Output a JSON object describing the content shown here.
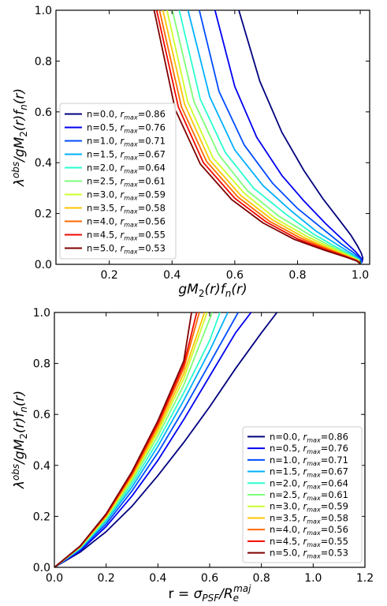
{
  "chart_data": [
    {
      "type": "line",
      "xlabel": "gM₂(r)fₙ(r)",
      "ylabel": "λᵒᵇˢ/gM₂(r)fₙ(r)",
      "xlim": [
        0.03,
        1.03
      ],
      "ylim": [
        0.0,
        1.0
      ],
      "xticks": [
        "0.2",
        "0.4",
        "0.6",
        "0.8",
        "1.0"
      ],
      "yticks": [
        "0.0",
        "0.2",
        "0.4",
        "0.6",
        "0.8",
        "1.0"
      ],
      "grid": false,
      "legend_position": "lower-left",
      "series": [
        {
          "name": "n=0.0, r_max=0.86",
          "n": 0.0,
          "r_max": 0.86,
          "color": "#00007f",
          "x": [
            0.613,
            0.68,
            0.75,
            0.82,
            0.88,
            0.93,
            0.97,
            0.99,
            1.003,
            1.008,
            1.006,
            1.0
          ],
          "y": [
            1.0,
            0.72,
            0.52,
            0.37,
            0.26,
            0.18,
            0.115,
            0.075,
            0.045,
            0.025,
            0.01,
            0.0
          ]
        },
        {
          "name": "n=0.5, r_max=0.76",
          "n": 0.5,
          "r_max": 0.76,
          "color": "#0000f1",
          "x": [
            0.537,
            0.6,
            0.67,
            0.75,
            0.82,
            0.89,
            0.95,
            0.985,
            1.002,
            1.006,
            1.0
          ],
          "y": [
            1.0,
            0.7,
            0.5,
            0.35,
            0.25,
            0.16,
            0.09,
            0.05,
            0.025,
            0.012,
            0.0
          ]
        },
        {
          "name": "n=1.0, r_max=0.71",
          "n": 1.0,
          "r_max": 0.71,
          "color": "#004cff",
          "x": [
            0.487,
            0.55,
            0.63,
            0.72,
            0.8,
            0.88,
            0.94,
            0.98,
            1.0,
            1.004,
            1.0
          ],
          "y": [
            1.0,
            0.68,
            0.47,
            0.32,
            0.22,
            0.14,
            0.08,
            0.045,
            0.022,
            0.01,
            0.0
          ]
        },
        {
          "name": "n=1.5, r_max=0.67",
          "n": 1.5,
          "r_max": 0.67,
          "color": "#00b0ff",
          "x": [
            0.451,
            0.52,
            0.6,
            0.69,
            0.78,
            0.86,
            0.93,
            0.975,
            0.998,
            1.002,
            1.0
          ],
          "y": [
            1.0,
            0.66,
            0.45,
            0.31,
            0.21,
            0.13,
            0.075,
            0.04,
            0.02,
            0.009,
            0.0
          ]
        },
        {
          "name": "n=2.0, r_max=0.64",
          "n": 2.0,
          "r_max": 0.64,
          "color": "#29ffce",
          "x": [
            0.423,
            0.49,
            0.57,
            0.66,
            0.76,
            0.85,
            0.92,
            0.97,
            0.996,
            1.001,
            1.0
          ],
          "y": [
            1.0,
            0.65,
            0.44,
            0.3,
            0.2,
            0.12,
            0.07,
            0.038,
            0.018,
            0.008,
            0.0
          ]
        },
        {
          "name": "n=2.5, r_max=0.61",
          "n": 2.5,
          "r_max": 0.61,
          "color": "#7dff7a",
          "x": [
            0.401,
            0.47,
            0.55,
            0.64,
            0.74,
            0.84,
            0.915,
            0.967,
            0.994,
            1.0,
            1.0
          ],
          "y": [
            1.0,
            0.64,
            0.43,
            0.29,
            0.19,
            0.115,
            0.066,
            0.035,
            0.017,
            0.007,
            0.0
          ]
        },
        {
          "name": "n=3.0, r_max=0.59",
          "n": 3.0,
          "r_max": 0.59,
          "color": "#ceff29",
          "x": [
            0.384,
            0.45,
            0.53,
            0.63,
            0.73,
            0.83,
            0.91,
            0.964,
            0.993,
            0.999,
            1.0
          ],
          "y": [
            1.0,
            0.64,
            0.42,
            0.28,
            0.18,
            0.11,
            0.063,
            0.033,
            0.016,
            0.007,
            0.0
          ]
        },
        {
          "name": "n=3.5, r_max=0.58",
          "n": 3.5,
          "r_max": 0.58,
          "color": "#ffc400",
          "x": [
            0.371,
            0.44,
            0.52,
            0.62,
            0.72,
            0.82,
            0.905,
            0.962,
            0.992,
            0.999,
            1.0
          ],
          "y": [
            1.0,
            0.63,
            0.41,
            0.27,
            0.175,
            0.106,
            0.06,
            0.031,
            0.015,
            0.006,
            0.0
          ]
        },
        {
          "name": "n=4.0, r_max=0.56",
          "n": 4.0,
          "r_max": 0.56,
          "color": "#ff6800",
          "x": [
            0.36,
            0.43,
            0.51,
            0.61,
            0.71,
            0.81,
            0.9,
            0.96,
            0.991,
            0.998,
            1.0
          ],
          "y": [
            1.0,
            0.62,
            0.405,
            0.265,
            0.17,
            0.103,
            0.058,
            0.03,
            0.014,
            0.006,
            0.0
          ]
        },
        {
          "name": "n=4.5, r_max=0.55",
          "n": 4.5,
          "r_max": 0.55,
          "color": "#f10800",
          "x": [
            0.351,
            0.42,
            0.5,
            0.6,
            0.7,
            0.8,
            0.895,
            0.958,
            0.99,
            0.998,
            1.0
          ],
          "y": [
            1.0,
            0.62,
            0.4,
            0.26,
            0.167,
            0.1,
            0.056,
            0.029,
            0.014,
            0.006,
            0.0
          ]
        },
        {
          "name": "n=5.0, r_max=0.53",
          "n": 5.0,
          "r_max": 0.53,
          "color": "#7f0000",
          "x": [
            0.343,
            0.41,
            0.49,
            0.59,
            0.69,
            0.79,
            0.89,
            0.956,
            0.989,
            0.997,
            1.0
          ],
          "y": [
            1.0,
            0.61,
            0.395,
            0.255,
            0.163,
            0.098,
            0.054,
            0.028,
            0.013,
            0.005,
            0.0
          ]
        }
      ]
    },
    {
      "type": "line",
      "xlabel": "r = σ_PSF/R_e^maj",
      "ylabel": "λᵒᵇˢ/gM₂(r)fₙ(r)",
      "xlim": [
        0.0,
        1.2
      ],
      "ylim": [
        0.0,
        1.0
      ],
      "xticks": [
        "0.0",
        "0.2",
        "0.4",
        "0.6",
        "0.8",
        "1.0",
        "1.2"
      ],
      "yticks": [
        "0.0",
        "0.2",
        "0.4",
        "0.6",
        "0.8",
        "1.0"
      ],
      "grid": false,
      "legend_position": "lower-right",
      "series": [
        {
          "name": "n=0.0, r_max=0.86",
          "n": 0.0,
          "r_max": 0.86,
          "color": "#00007f",
          "x": [
            0.0,
            0.1,
            0.2,
            0.3,
            0.4,
            0.5,
            0.6,
            0.7,
            0.8,
            0.86
          ],
          "y": [
            0.0,
            0.06,
            0.14,
            0.24,
            0.36,
            0.49,
            0.63,
            0.78,
            0.92,
            1.0
          ]
        },
        {
          "name": "n=0.5, r_max=0.76",
          "n": 0.5,
          "r_max": 0.76,
          "color": "#0000f1",
          "x": [
            0.0,
            0.1,
            0.2,
            0.3,
            0.4,
            0.5,
            0.6,
            0.7,
            0.76
          ],
          "y": [
            0.0,
            0.065,
            0.16,
            0.28,
            0.42,
            0.58,
            0.75,
            0.92,
            1.0
          ]
        },
        {
          "name": "n=1.0, r_max=0.71",
          "n": 1.0,
          "r_max": 0.71,
          "color": "#004cff",
          "x": [
            0.0,
            0.1,
            0.2,
            0.3,
            0.4,
            0.5,
            0.6,
            0.71
          ],
          "y": [
            0.0,
            0.07,
            0.17,
            0.3,
            0.45,
            0.62,
            0.8,
            1.0
          ]
        },
        {
          "name": "n=1.5, r_max=0.67",
          "n": 1.5,
          "r_max": 0.67,
          "color": "#00b0ff",
          "x": [
            0.0,
            0.1,
            0.2,
            0.3,
            0.4,
            0.5,
            0.6,
            0.67
          ],
          "y": [
            0.0,
            0.073,
            0.18,
            0.315,
            0.475,
            0.655,
            0.85,
            1.0
          ]
        },
        {
          "name": "n=2.0, r_max=0.64",
          "n": 2.0,
          "r_max": 0.64,
          "color": "#29ffce",
          "x": [
            0.0,
            0.1,
            0.2,
            0.3,
            0.4,
            0.5,
            0.6,
            0.64
          ],
          "y": [
            0.0,
            0.076,
            0.186,
            0.328,
            0.495,
            0.685,
            0.89,
            1.0
          ]
        },
        {
          "name": "n=2.5, r_max=0.61",
          "n": 2.5,
          "r_max": 0.61,
          "color": "#7dff7a",
          "x": [
            0.0,
            0.1,
            0.2,
            0.3,
            0.4,
            0.5,
            0.61
          ],
          "y": [
            0.0,
            0.078,
            0.192,
            0.34,
            0.515,
            0.715,
            1.0
          ]
        },
        {
          "name": "n=3.0, r_max=0.59",
          "n": 3.0,
          "r_max": 0.59,
          "color": "#ceff29",
          "x": [
            0.0,
            0.1,
            0.2,
            0.3,
            0.4,
            0.5,
            0.59
          ],
          "y": [
            0.0,
            0.08,
            0.197,
            0.35,
            0.53,
            0.74,
            1.0
          ]
        },
        {
          "name": "n=3.5, r_max=0.58",
          "n": 3.5,
          "r_max": 0.58,
          "color": "#ffc400",
          "x": [
            0.0,
            0.1,
            0.2,
            0.3,
            0.4,
            0.5,
            0.58
          ],
          "y": [
            0.0,
            0.081,
            0.2,
            0.356,
            0.542,
            0.76,
            1.0
          ]
        },
        {
          "name": "n=4.0, r_max=0.56",
          "n": 4.0,
          "r_max": 0.56,
          "color": "#ff6800",
          "x": [
            0.0,
            0.1,
            0.2,
            0.3,
            0.4,
            0.5,
            0.56
          ],
          "y": [
            0.0,
            0.082,
            0.204,
            0.363,
            0.555,
            0.78,
            1.0
          ]
        },
        {
          "name": "n=4.5, r_max=0.55",
          "n": 4.5,
          "r_max": 0.55,
          "color": "#f10800",
          "x": [
            0.0,
            0.1,
            0.2,
            0.3,
            0.4,
            0.5,
            0.55
          ],
          "y": [
            0.0,
            0.083,
            0.207,
            0.37,
            0.565,
            0.795,
            1.0
          ]
        },
        {
          "name": "n=5.0, r_max=0.53",
          "n": 5.0,
          "r_max": 0.53,
          "color": "#7f0000",
          "x": [
            0.0,
            0.1,
            0.2,
            0.3,
            0.4,
            0.5,
            0.53
          ],
          "y": [
            0.0,
            0.084,
            0.21,
            0.376,
            0.575,
            0.81,
            1.0
          ]
        }
      ]
    }
  ]
}
